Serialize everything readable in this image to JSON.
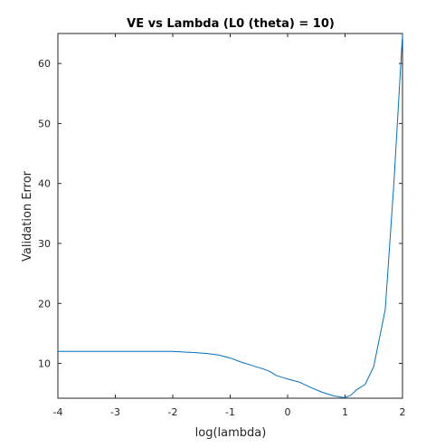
{
  "chart_data": {
    "type": "line",
    "title": "VE vs Lambda (L0 (theta) = 10)",
    "xlabel": "log(lambda)",
    "ylabel": "Validation Error",
    "xlim": [
      -4,
      2
    ],
    "ylim": [
      4.2,
      65
    ],
    "grid": false,
    "line_color": "#0072bd",
    "x_ticks": [
      -4,
      -3,
      -2,
      -1,
      0,
      1,
      2
    ],
    "x_tick_labels": [
      "-4",
      "-3",
      "-2",
      "-1",
      "0",
      "1",
      "2"
    ],
    "y_ticks": [
      10,
      20,
      30,
      40,
      50,
      60
    ],
    "y_tick_labels": [
      "10",
      "20",
      "30",
      "40",
      "50",
      "60"
    ],
    "series": [
      {
        "x": [
          -4,
          -3.6,
          -3.2,
          -2.8,
          -2.4,
          -2.0,
          -1.8,
          -1.6,
          -1.4,
          -1.2,
          -1.0,
          -0.8,
          -0.6,
          -0.4,
          -0.3,
          -0.2,
          0.0,
          0.2,
          0.4,
          0.6,
          0.8,
          0.95,
          1.0,
          1.1,
          1.2,
          1.35,
          1.5,
          1.7,
          1.85,
          2.0
        ],
        "y": [
          12.0,
          12.0,
          12.0,
          12.0,
          12.0,
          12.0,
          11.9,
          11.8,
          11.65,
          11.4,
          10.9,
          10.2,
          9.6,
          9.0,
          8.6,
          8.0,
          7.4,
          6.9,
          6.0,
          5.2,
          4.6,
          4.35,
          4.3,
          4.7,
          5.6,
          6.5,
          9.5,
          19.0,
          40.0,
          64.8
        ]
      }
    ]
  }
}
